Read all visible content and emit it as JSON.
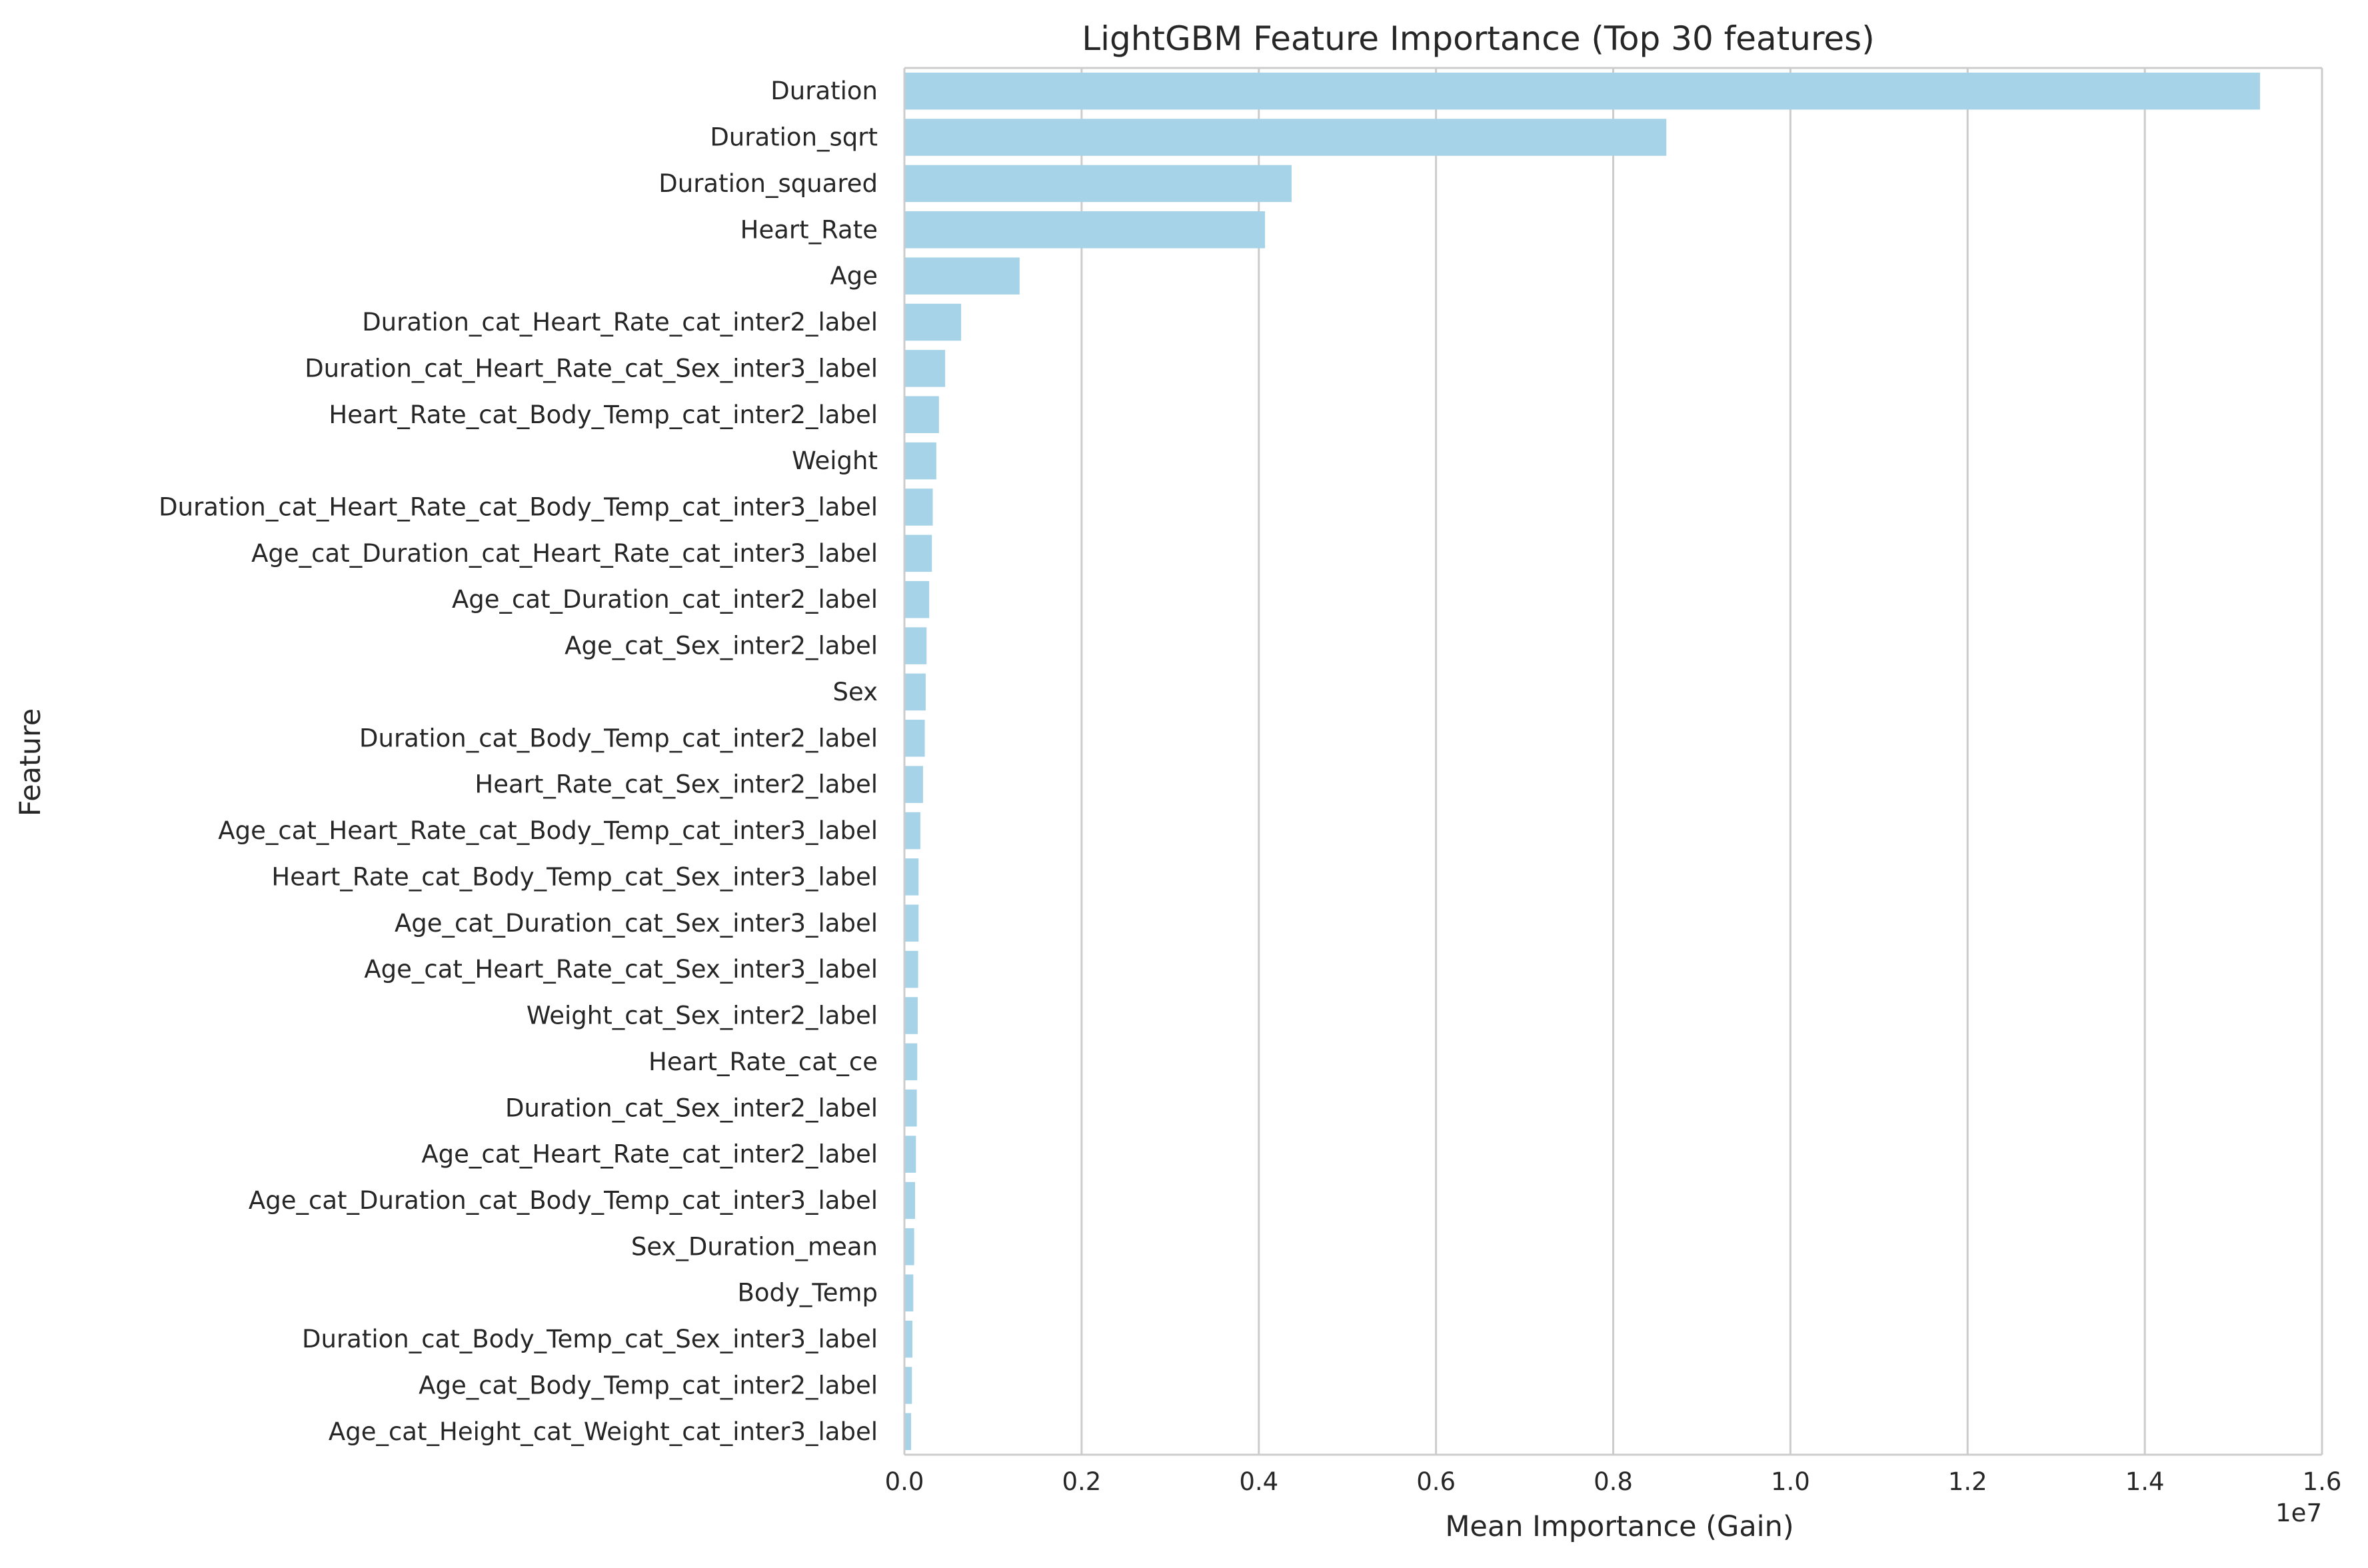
{
  "chart_data": {
    "type": "bar",
    "orientation": "horizontal",
    "title": "LightGBM Feature Importance (Top 30 features)",
    "xlabel": "Mean Importance (Gain)",
    "ylabel": "Feature",
    "x_offset_label": "1e7",
    "xlim": [
      0,
      16000000
    ],
    "x_ticks": [
      0,
      2000000,
      4000000,
      6000000,
      8000000,
      10000000,
      12000000,
      14000000,
      16000000
    ],
    "x_tick_labels": [
      "0.0",
      "0.2",
      "0.4",
      "0.6",
      "0.8",
      "1.0",
      "1.2",
      "1.4",
      "1.6"
    ],
    "grid": true,
    "bar_color": "#a6d3e8",
    "categories": [
      "Duration",
      "Duration_sqrt",
      "Duration_squared",
      "Heart_Rate",
      "Age",
      "Duration_cat_Heart_Rate_cat_inter2_label",
      "Duration_cat_Heart_Rate_cat_Sex_inter3_label",
      "Heart_Rate_cat_Body_Temp_cat_inter2_label",
      "Weight",
      "Duration_cat_Heart_Rate_cat_Body_Temp_cat_inter3_label",
      "Age_cat_Duration_cat_Heart_Rate_cat_inter3_label",
      "Age_cat_Duration_cat_inter2_label",
      "Age_cat_Sex_inter2_label",
      "Sex",
      "Duration_cat_Body_Temp_cat_inter2_label",
      "Heart_Rate_cat_Sex_inter2_label",
      "Age_cat_Heart_Rate_cat_Body_Temp_cat_inter3_label",
      "Heart_Rate_cat_Body_Temp_cat_Sex_inter3_label",
      "Age_cat_Duration_cat_Sex_inter3_label",
      "Age_cat_Heart_Rate_cat_Sex_inter3_label",
      "Weight_cat_Sex_inter2_label",
      "Heart_Rate_cat_ce",
      "Duration_cat_Sex_inter2_label",
      "Age_cat_Heart_Rate_cat_inter2_label",
      "Age_cat_Duration_cat_Body_Temp_cat_inter3_label",
      "Sex_Duration_mean",
      "Body_Temp",
      "Duration_cat_Body_Temp_cat_Sex_inter3_label",
      "Age_cat_Body_Temp_cat_inter2_label",
      "Age_cat_Height_cat_Weight_cat_inter3_label"
    ],
    "values": [
      15300000,
      8600000,
      4370000,
      4070000,
      1300000,
      640000,
      460000,
      390000,
      360000,
      320000,
      310000,
      280000,
      250000,
      240000,
      230000,
      210000,
      180000,
      160000,
      160000,
      155000,
      150000,
      145000,
      140000,
      130000,
      120000,
      110000,
      100000,
      90000,
      85000,
      75000
    ]
  }
}
